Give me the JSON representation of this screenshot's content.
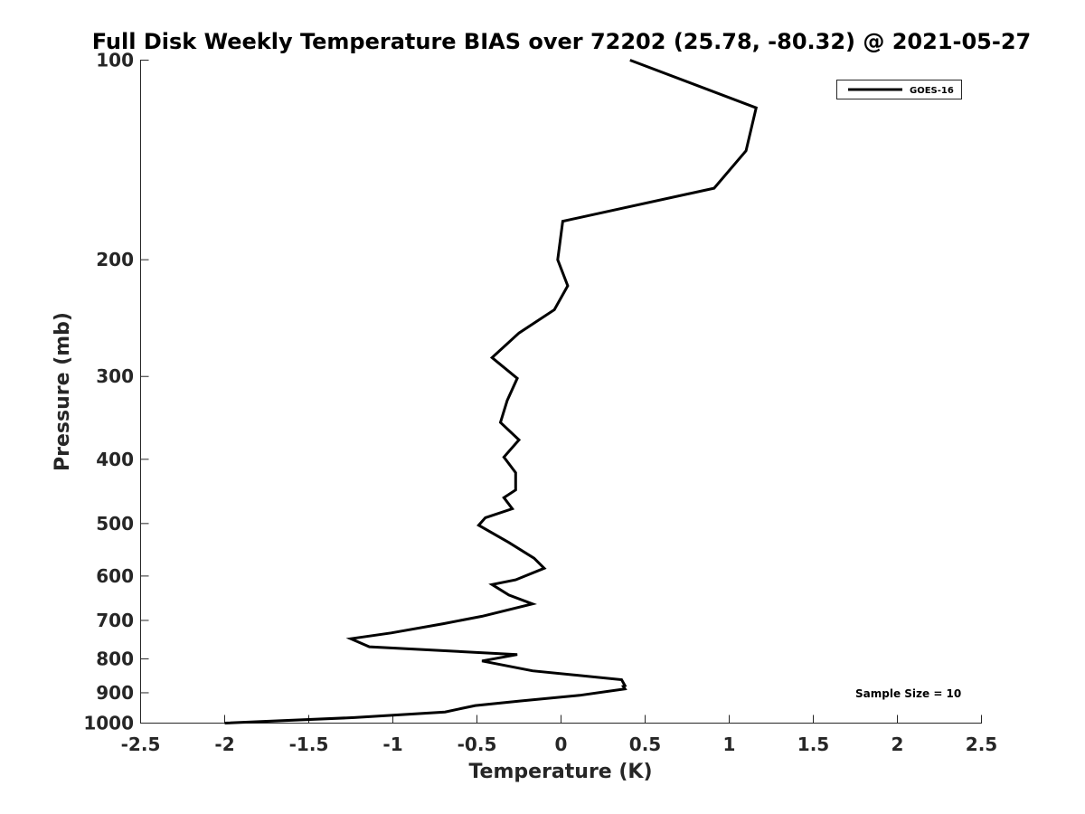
{
  "chart_data": {
    "type": "line",
    "title": "Full Disk Weekly Temperature BIAS over 72202 (25.78, -80.32) @ 2021-05-27",
    "xlabel": "Temperature (K)",
    "ylabel": "Pressure (mb)",
    "xlim": [
      -2.5,
      2.5
    ],
    "ylim": [
      100,
      1000
    ],
    "y_scale": "log",
    "y_reversed": true,
    "x_ticks": [
      -2.5,
      -2,
      -1.5,
      -1,
      -0.5,
      0,
      0.5,
      1,
      1.5,
      2,
      2.5
    ],
    "x_tick_labels": [
      "-2.5",
      "-2",
      "-1.5",
      "-1",
      "-0.5",
      "0",
      "0.5",
      "1",
      "1.5",
      "2",
      "2.5"
    ],
    "y_ticks": [
      100,
      200,
      300,
      400,
      500,
      600,
      700,
      800,
      900,
      1000
    ],
    "y_tick_labels": [
      "100",
      "200",
      "300",
      "400",
      "500",
      "600",
      "700",
      "800",
      "900",
      "1000"
    ],
    "grid": false,
    "legend_position": "top-right",
    "series": [
      {
        "name": "GOES-16",
        "color": "#000000",
        "points": [
          [
            0.41,
            100
          ],
          [
            1.16,
            118
          ],
          [
            1.1,
            137
          ],
          [
            0.91,
            156
          ],
          [
            0.01,
            175
          ],
          [
            -0.02,
            200
          ],
          [
            0.04,
            219
          ],
          [
            -0.04,
            238
          ],
          [
            -0.25,
            258
          ],
          [
            -0.41,
            281
          ],
          [
            -0.26,
            302
          ],
          [
            -0.32,
            326
          ],
          [
            -0.36,
            352
          ],
          [
            -0.25,
            374
          ],
          [
            -0.34,
            397
          ],
          [
            -0.27,
            419
          ],
          [
            -0.27,
            445
          ],
          [
            -0.34,
            457
          ],
          [
            -0.29,
            475
          ],
          [
            -0.45,
            490
          ],
          [
            -0.49,
            503
          ],
          [
            -0.31,
            534
          ],
          [
            -0.16,
            564
          ],
          [
            -0.1,
            584
          ],
          [
            -0.27,
            608
          ],
          [
            -0.41,
            618
          ],
          [
            -0.31,
            641
          ],
          [
            -0.17,
            661
          ],
          [
            -0.47,
            690
          ],
          [
            -0.7,
            708
          ],
          [
            -1.01,
            731
          ],
          [
            -1.25,
            746
          ],
          [
            -1.14,
            767
          ],
          [
            -0.26,
            788
          ],
          [
            -0.47,
            806
          ],
          [
            -0.17,
            834
          ],
          [
            0.36,
            860
          ],
          [
            0.38,
            878
          ],
          [
            0.37,
            880
          ],
          [
            0.38,
            888
          ],
          [
            0.11,
            908
          ],
          [
            -0.24,
            926
          ],
          [
            -0.51,
            941
          ],
          [
            -0.69,
            962
          ],
          [
            -1.23,
            981
          ],
          [
            -2.0,
            1000
          ]
        ]
      }
    ],
    "annotations": [
      "Sample Size = 10"
    ]
  }
}
